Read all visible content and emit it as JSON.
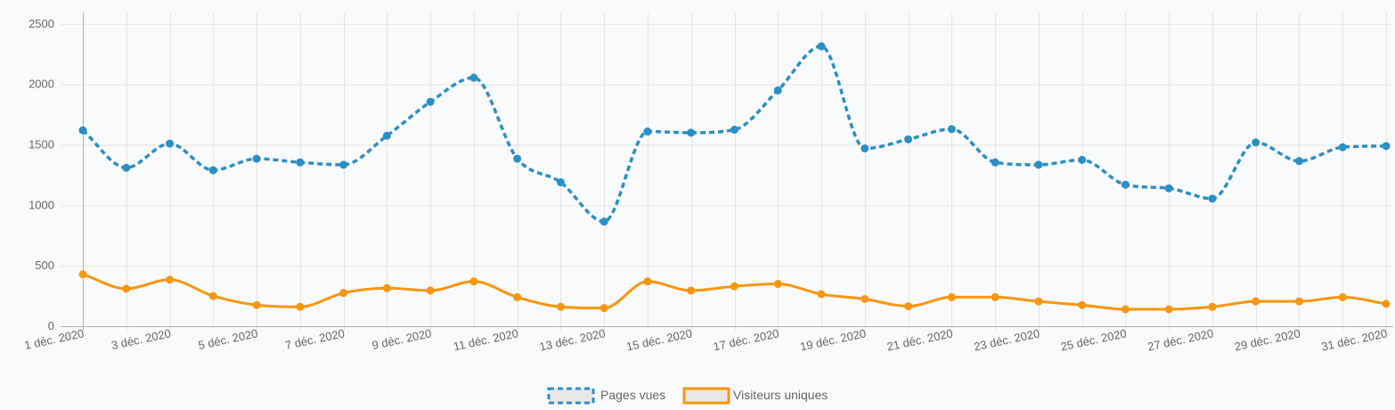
{
  "chart_data": {
    "type": "line",
    "x": [
      "1 déc. 2020",
      "2 déc. 2020",
      "3 déc. 2020",
      "4 déc. 2020",
      "5 déc. 2020",
      "6 déc. 2020",
      "7 déc. 2020",
      "8 déc. 2020",
      "9 déc. 2020",
      "10 déc. 2020",
      "11 déc. 2020",
      "12 déc. 2020",
      "13 déc. 2020",
      "14 déc. 2020",
      "15 déc. 2020",
      "16 déc. 2020",
      "17 déc. 2020",
      "18 déc. 2020",
      "19 déc. 2020",
      "20 déc. 2020",
      "21 déc. 2020",
      "22 déc. 2020",
      "23 déc. 2020",
      "24 déc. 2020",
      "25 déc. 2020",
      "26 déc. 2020",
      "27 déc. 2020",
      "28 déc. 2020",
      "29 déc. 2020",
      "30 déc. 2020",
      "31 déc. 2020"
    ],
    "x_tick_labels": [
      "1 déc. 2020",
      "3 déc. 2020",
      "5 déc. 2020",
      "7 déc. 2020",
      "9 déc. 2020",
      "11 déc. 2020",
      "13 déc. 2020",
      "15 déc. 2020",
      "17 déc. 2020",
      "19 déc. 2020",
      "21 déc. 2020",
      "23 déc. 2020",
      "25 déc. 2020",
      "27 déc. 2020",
      "29 déc. 2020",
      "31 déc. 2020"
    ],
    "y_ticks": [
      0,
      500,
      1000,
      1500,
      2000,
      2500
    ],
    "ylim": [
      0,
      2550
    ],
    "grid": true,
    "legend_position": "bottom-center",
    "series": [
      {
        "name": "Pages vues",
        "color": "#2b8fc5",
        "line_style": "dashed",
        "values": [
          1620,
          1310,
          1510,
          1290,
          1385,
          1355,
          1335,
          1575,
          1855,
          2055,
          1385,
          1190,
          865,
          1610,
          1600,
          1625,
          1950,
          2315,
          1470,
          1545,
          1630,
          1355,
          1335,
          1375,
          1170,
          1140,
          1055,
          1520,
          1365,
          1480,
          1490
        ]
      },
      {
        "name": "Visiteurs uniques",
        "color": "#f7960f",
        "line_style": "solid",
        "values": [
          430,
          310,
          385,
          250,
          175,
          160,
          275,
          315,
          295,
          370,
          240,
          160,
          150,
          370,
          295,
          330,
          350,
          265,
          225,
          165,
          240,
          240,
          205,
          175,
          140,
          140,
          160,
          205,
          205,
          240,
          185
        ]
      }
    ]
  }
}
